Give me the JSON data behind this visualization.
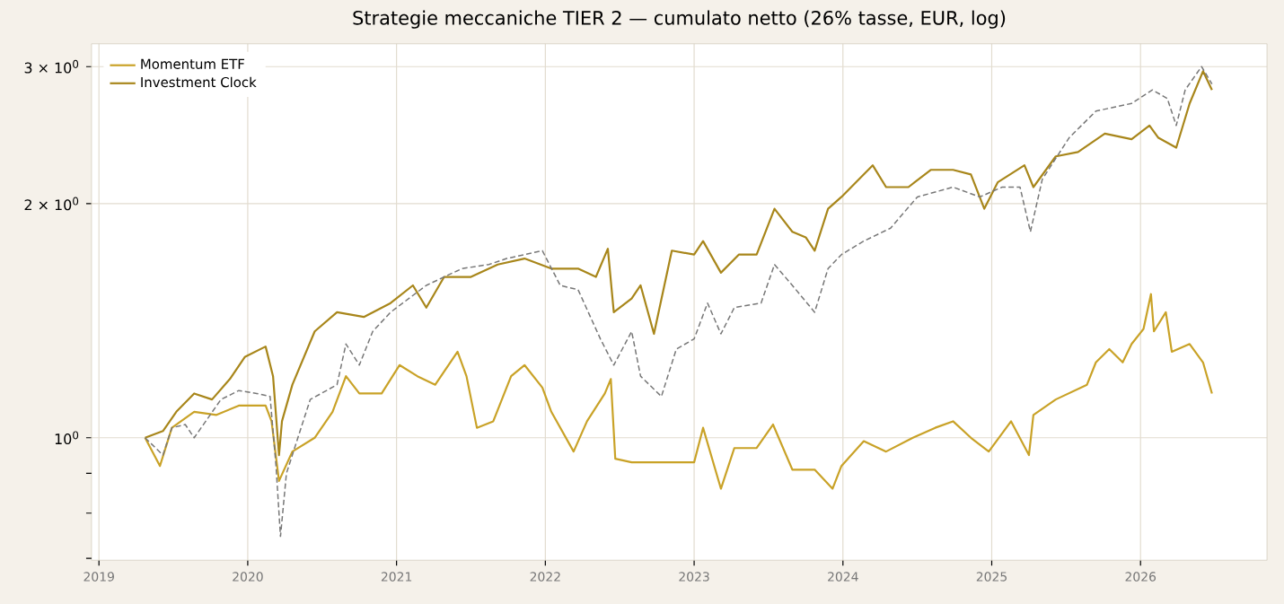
{
  "chart_data": {
    "type": "line",
    "title": "Strategie meccaniche TIER 2 — cumulato netto (26% tasse, EUR, log)",
    "log": "y",
    "grid": true,
    "legend": "top left",
    "xlim": [
      2018.95,
      2026.85
    ],
    "xticks": [
      2019,
      2020,
      2021,
      2022,
      2023,
      2024,
      2025,
      2026
    ],
    "ylim": [
      0.696,
      3.21
    ],
    "yticks": [
      {
        "value": 0.7,
        "label": null
      },
      {
        "value": 0.8,
        "label": null
      },
      {
        "value": 0.9,
        "label": null
      },
      {
        "value": 1,
        "label": "10$^{0}$"
      },
      {
        "value": 2,
        "label": "2 × 10$^{0}$"
      },
      {
        "value": 3,
        "label": "3 × 10$^{0}$"
      }
    ],
    "series": [
      {
        "name": "Momentum ETF",
        "color": "#c9a227",
        "line_style": "solid",
        "x": [
          2019.31,
          2019.41,
          2019.49,
          2019.64,
          2019.79,
          2019.94,
          2020.03,
          2020.12,
          2020.16,
          2020.21,
          2020.3,
          2020.45,
          2020.57,
          2020.66,
          2020.75,
          2020.9,
          2021.02,
          2021.14,
          2021.26,
          2021.41,
          2021.47,
          2021.54,
          2021.65,
          2021.77,
          2021.86,
          2021.98,
          2022.04,
          2022.19,
          2022.28,
          2022.4,
          2022.44,
          2022.47,
          2022.58,
          2023.0,
          2023.06,
          2023.18,
          2023.27,
          2023.42,
          2023.53,
          2023.66,
          2023.81,
          2023.93,
          2023.99,
          2024.14,
          2024.29,
          2024.47,
          2024.62,
          2024.74,
          2024.86,
          2024.98,
          2025.13,
          2025.25,
          2025.28,
          2025.43,
          2025.64,
          2025.7,
          2025.79,
          2025.88,
          2025.94,
          2026.02,
          2026.07,
          2026.09,
          2026.17,
          2026.21,
          2026.33,
          2026.42,
          2026.48
        ],
        "values": [
          1.0,
          0.92,
          1.03,
          1.08,
          1.07,
          1.1,
          1.1,
          1.1,
          1.05,
          0.88,
          0.96,
          1.0,
          1.08,
          1.2,
          1.14,
          1.14,
          1.24,
          1.2,
          1.17,
          1.29,
          1.2,
          1.03,
          1.05,
          1.2,
          1.24,
          1.16,
          1.08,
          0.96,
          1.05,
          1.14,
          1.19,
          0.94,
          0.93,
          0.93,
          1.03,
          0.86,
          0.97,
          0.97,
          1.04,
          0.91,
          0.91,
          0.86,
          0.92,
          0.99,
          0.96,
          1.0,
          1.03,
          1.05,
          1.0,
          0.96,
          1.05,
          0.95,
          1.07,
          1.12,
          1.17,
          1.25,
          1.3,
          1.25,
          1.32,
          1.38,
          1.53,
          1.37,
          1.45,
          1.29,
          1.32,
          1.25,
          1.14
        ]
      },
      {
        "name": "Investment Clock",
        "color": "#a8861a",
        "line_style": "solid",
        "x": [
          2019.31,
          2019.43,
          2019.52,
          2019.64,
          2019.76,
          2019.88,
          2019.98,
          2020.12,
          2020.17,
          2020.21,
          2020.23,
          2020.3,
          2020.45,
          2020.6,
          2020.78,
          2020.96,
          2021.11,
          2021.2,
          2021.32,
          2021.5,
          2021.68,
          2021.86,
          2022.04,
          2022.22,
          2022.34,
          2022.42,
          2022.46,
          2022.58,
          2022.64,
          2022.73,
          2022.85,
          2023.0,
          2023.06,
          2023.18,
          2023.3,
          2023.42,
          2023.54,
          2023.66,
          2023.75,
          2023.81,
          2023.9,
          2023.99,
          2024.2,
          2024.29,
          2024.44,
          2024.59,
          2024.74,
          2024.86,
          2024.95,
          2025.04,
          2025.22,
          2025.28,
          2025.43,
          2025.58,
          2025.76,
          2025.94,
          2026.06,
          2026.12,
          2026.24,
          2026.33,
          2026.42,
          2026.48
        ],
        "values": [
          1.0,
          1.02,
          1.08,
          1.14,
          1.12,
          1.19,
          1.27,
          1.31,
          1.2,
          0.95,
          1.05,
          1.17,
          1.37,
          1.45,
          1.43,
          1.49,
          1.57,
          1.47,
          1.61,
          1.61,
          1.67,
          1.7,
          1.65,
          1.65,
          1.61,
          1.75,
          1.45,
          1.51,
          1.57,
          1.36,
          1.74,
          1.72,
          1.79,
          1.63,
          1.72,
          1.72,
          1.97,
          1.84,
          1.81,
          1.74,
          1.97,
          2.04,
          2.24,
          2.1,
          2.1,
          2.21,
          2.21,
          2.18,
          1.97,
          2.13,
          2.24,
          2.1,
          2.3,
          2.33,
          2.46,
          2.42,
          2.52,
          2.43,
          2.36,
          2.69,
          2.96,
          2.8
        ]
      },
      {
        "color": "#777777",
        "line_style": "dashed",
        "x": [
          2019.31,
          2019.43,
          2019.49,
          2019.58,
          2019.64,
          2019.82,
          2019.94,
          2020.06,
          2020.15,
          2020.19,
          2020.22,
          2020.26,
          2020.42,
          2020.6,
          2020.66,
          2020.75,
          2020.84,
          2020.96,
          2021.2,
          2021.32,
          2021.44,
          2021.62,
          2021.74,
          2021.86,
          2021.98,
          2022.1,
          2022.22,
          2022.37,
          2022.46,
          2022.58,
          2022.64,
          2022.78,
          2022.88,
          2023.0,
          2023.09,
          2023.18,
          2023.27,
          2023.45,
          2023.54,
          2023.66,
          2023.81,
          2023.9,
          2023.99,
          2024.14,
          2024.32,
          2024.5,
          2024.74,
          2024.92,
          2025.07,
          2025.19,
          2025.26,
          2025.34,
          2025.52,
          2025.7,
          2025.82,
          2025.94,
          2026.08,
          2026.18,
          2026.24,
          2026.3,
          2026.41,
          2026.48
        ],
        "values": [
          1.0,
          0.95,
          1.03,
          1.04,
          1.0,
          1.12,
          1.15,
          1.14,
          1.13,
          0.92,
          0.747,
          0.9,
          1.12,
          1.17,
          1.32,
          1.24,
          1.37,
          1.45,
          1.57,
          1.61,
          1.65,
          1.67,
          1.7,
          1.72,
          1.74,
          1.57,
          1.55,
          1.34,
          1.24,
          1.37,
          1.2,
          1.13,
          1.3,
          1.34,
          1.49,
          1.36,
          1.47,
          1.49,
          1.67,
          1.57,
          1.45,
          1.65,
          1.72,
          1.79,
          1.86,
          2.04,
          2.1,
          2.04,
          2.1,
          2.1,
          1.84,
          2.15,
          2.43,
          2.63,
          2.66,
          2.69,
          2.8,
          2.73,
          2.52,
          2.8,
          3.0,
          2.85
        ]
      }
    ]
  }
}
